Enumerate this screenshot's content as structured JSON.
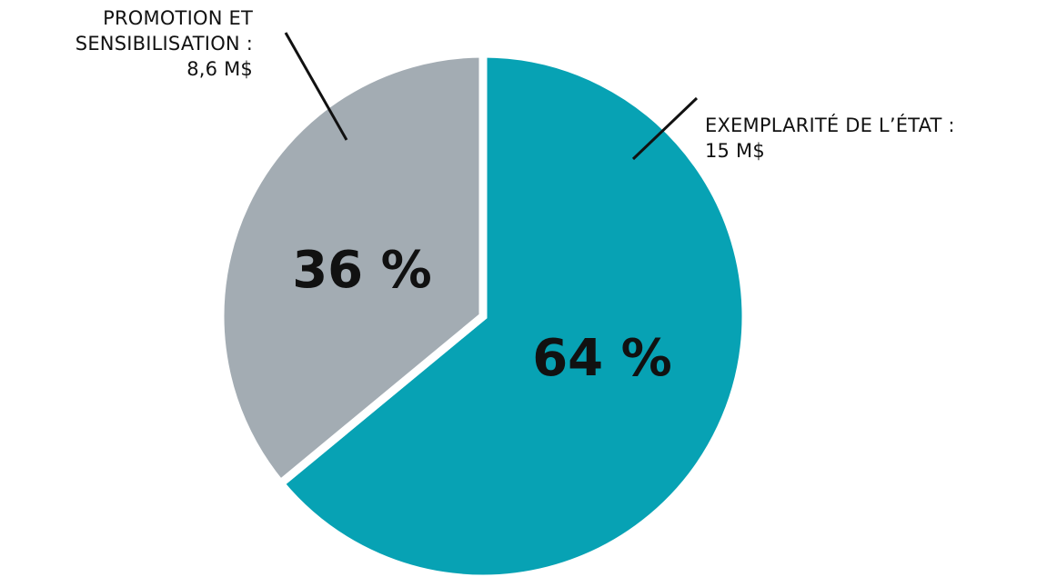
{
  "chart_data": {
    "type": "pie",
    "slices": [
      {
        "label_lines": [
          "EXEMPLARITÉ DE L’ÉTAT :",
          "15 M$"
        ],
        "amount": 15,
        "unit": "M$",
        "percent": 64,
        "percent_label": "64 %",
        "color": "#07a2b4"
      },
      {
        "label_lines": [
          "PROMOTION ET",
          "SENSIBILISATION :",
          "8,6 M$"
        ],
        "amount": 8.6,
        "unit": "M$",
        "percent": 36,
        "percent_label": "36 %",
        "color": "#a3acb3"
      }
    ],
    "start_angle_deg": 0,
    "direction": "clockwise",
    "separator_color": "#ffffff"
  }
}
